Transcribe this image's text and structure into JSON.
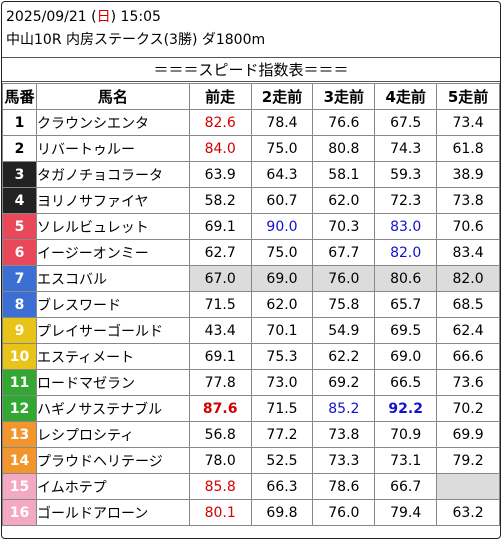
{
  "header": {
    "date": "2025/09/21",
    "weekday": "日",
    "time": "15:05",
    "race": "中山10R 内房ステークス(3勝) ダ1800m"
  },
  "banner": "＝＝＝スピード指数表＝＝＝",
  "columns": [
    "馬番",
    "馬名",
    "前走",
    "2走前",
    "3走前",
    "4走前",
    "5走前"
  ],
  "gate_colors": {
    "1": "#ffffff",
    "2": "#ffffff",
    "3": "#222222",
    "4": "#222222",
    "5": "#e8485a",
    "6": "#e8485a",
    "7": "#3b6fd4",
    "8": "#3b6fd4",
    "9": "#e8c318",
    "10": "#e8c318",
    "11": "#32a832",
    "12": "#32a832",
    "13": "#f2952c",
    "14": "#f2952c",
    "15": "#f4a9c2",
    "16": "#f4a9c2"
  },
  "horses": [
    {
      "no": "1",
      "name": "クラウンシエンタ",
      "v": [
        "82.6",
        "78.4",
        "76.6",
        "67.5",
        "73.4"
      ],
      "c": [
        "red",
        "",
        "",
        "",
        ""
      ],
      "b": [
        false,
        false,
        false,
        false,
        false
      ]
    },
    {
      "no": "2",
      "name": "リバートゥルー",
      "v": [
        "84.0",
        "75.0",
        "80.8",
        "74.3",
        "61.8"
      ],
      "c": [
        "red",
        "",
        "",
        "",
        ""
      ],
      "b": [
        false,
        false,
        false,
        false,
        false
      ]
    },
    {
      "no": "3",
      "name": "タガノチョコラータ",
      "v": [
        "63.9",
        "64.3",
        "58.1",
        "59.3",
        "38.9"
      ],
      "c": [
        "",
        "",
        "",
        "",
        ""
      ],
      "b": [
        false,
        false,
        false,
        false,
        false
      ]
    },
    {
      "no": "4",
      "name": "ヨリノサファイヤ",
      "v": [
        "58.2",
        "60.7",
        "62.0",
        "72.3",
        "73.8"
      ],
      "c": [
        "",
        "",
        "",
        "",
        ""
      ],
      "b": [
        false,
        false,
        false,
        false,
        false
      ]
    },
    {
      "no": "5",
      "name": "ソレルビュレット",
      "v": [
        "69.1",
        "90.0",
        "70.3",
        "83.0",
        "70.6"
      ],
      "c": [
        "",
        "blue",
        "",
        "blue",
        ""
      ],
      "b": [
        false,
        false,
        false,
        false,
        false
      ]
    },
    {
      "no": "6",
      "name": "イージーオンミー",
      "v": [
        "62.7",
        "75.0",
        "67.7",
        "82.0",
        "83.4"
      ],
      "c": [
        "",
        "",
        "",
        "blue",
        ""
      ],
      "b": [
        false,
        false,
        false,
        false,
        false
      ]
    },
    {
      "no": "7",
      "name": "エスコバル",
      "v": [
        "67.0",
        "69.0",
        "76.0",
        "80.6",
        "82.0"
      ],
      "c": [
        "",
        "",
        "",
        "",
        ""
      ],
      "b": [
        false,
        false,
        false,
        false,
        false
      ],
      "hl": true
    },
    {
      "no": "8",
      "name": "ブレスワード",
      "v": [
        "71.5",
        "62.0",
        "75.8",
        "65.7",
        "68.5"
      ],
      "c": [
        "",
        "",
        "",
        "",
        ""
      ],
      "b": [
        false,
        false,
        false,
        false,
        false
      ]
    },
    {
      "no": "9",
      "name": "プレイサーゴールド",
      "v": [
        "43.4",
        "70.1",
        "54.9",
        "69.5",
        "62.4"
      ],
      "c": [
        "",
        "",
        "",
        "",
        ""
      ],
      "b": [
        false,
        false,
        false,
        false,
        false
      ]
    },
    {
      "no": "10",
      "name": "エスティメート",
      "v": [
        "69.1",
        "75.3",
        "62.2",
        "69.0",
        "66.6"
      ],
      "c": [
        "",
        "",
        "",
        "",
        ""
      ],
      "b": [
        false,
        false,
        false,
        false,
        false
      ]
    },
    {
      "no": "11",
      "name": "ロードマゼラン",
      "v": [
        "77.8",
        "73.0",
        "69.2",
        "66.5",
        "73.6"
      ],
      "c": [
        "",
        "",
        "",
        "",
        ""
      ],
      "b": [
        false,
        false,
        false,
        false,
        false
      ]
    },
    {
      "no": "12",
      "name": "ハギノサステナブル",
      "v": [
        "87.6",
        "71.5",
        "85.2",
        "92.2",
        "70.2"
      ],
      "c": [
        "red",
        "",
        "blue",
        "blue",
        ""
      ],
      "b": [
        true,
        false,
        false,
        true,
        false
      ]
    },
    {
      "no": "13",
      "name": "レシプロシティ",
      "v": [
        "56.8",
        "77.2",
        "73.8",
        "70.9",
        "69.9"
      ],
      "c": [
        "",
        "",
        "",
        "",
        ""
      ],
      "b": [
        false,
        false,
        false,
        false,
        false
      ]
    },
    {
      "no": "14",
      "name": "プラウドヘリテージ",
      "v": [
        "78.0",
        "52.5",
        "73.3",
        "73.1",
        "79.2"
      ],
      "c": [
        "",
        "",
        "",
        "",
        ""
      ],
      "b": [
        false,
        false,
        false,
        false,
        false
      ]
    },
    {
      "no": "15",
      "name": "イムホテプ",
      "v": [
        "85.8",
        "66.3",
        "78.6",
        "66.7",
        ""
      ],
      "c": [
        "red",
        "",
        "",
        "",
        ""
      ],
      "b": [
        false,
        false,
        false,
        false,
        false
      ]
    },
    {
      "no": "16",
      "name": "ゴールドアローン",
      "v": [
        "80.1",
        "69.8",
        "76.0",
        "79.4",
        "63.2"
      ],
      "c": [
        "red",
        "",
        "",
        "",
        ""
      ],
      "b": [
        false,
        false,
        false,
        false,
        false
      ]
    }
  ]
}
